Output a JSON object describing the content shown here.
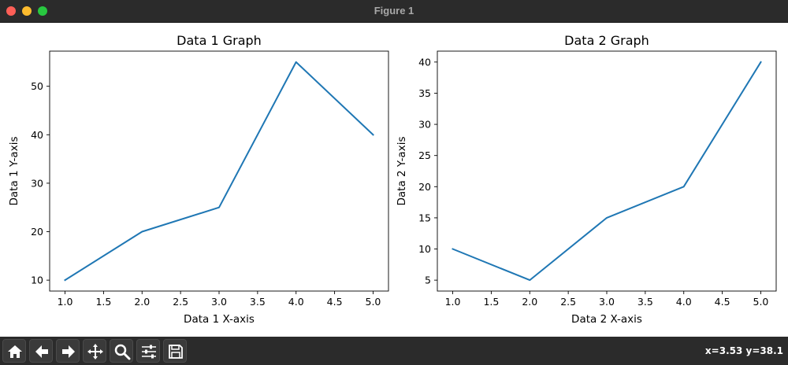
{
  "window": {
    "title": "Figure 1"
  },
  "toolbar": {
    "buttons": [
      {
        "name": "home",
        "icon": "home-icon"
      },
      {
        "name": "back",
        "icon": "arrow-left-icon"
      },
      {
        "name": "forward",
        "icon": "arrow-right-icon"
      },
      {
        "name": "pan",
        "icon": "move-icon"
      },
      {
        "name": "zoom",
        "icon": "magnifier-icon"
      },
      {
        "name": "configure",
        "icon": "sliders-icon"
      },
      {
        "name": "save",
        "icon": "floppy-disk-icon"
      }
    ],
    "coordinates": "x=3.53 y=38.1"
  },
  "colors": {
    "line": "#1f77b4",
    "titlebar": "#2b2b2b"
  },
  "chart_data": [
    {
      "type": "line",
      "title": "Data 1 Graph",
      "xlabel": "Data 1 X-axis",
      "ylabel": "Data 1 Y-axis",
      "x": [
        1,
        2,
        3,
        4,
        5
      ],
      "series": [
        {
          "values": [
            10,
            20,
            25,
            55,
            40
          ]
        }
      ],
      "xlim": [
        0.8,
        5.2
      ],
      "ylim": [
        7.75,
        57.25
      ],
      "xticks": [
        "1.0",
        "1.5",
        "2.0",
        "2.5",
        "3.0",
        "3.5",
        "4.0",
        "4.5",
        "5.0"
      ],
      "yticks": [
        "10",
        "20",
        "30",
        "40",
        "50"
      ],
      "grid": false
    },
    {
      "type": "line",
      "title": "Data 2 Graph",
      "xlabel": "Data 2 X-axis",
      "ylabel": "Data 2 Y-axis",
      "x": [
        1,
        2,
        3,
        4,
        5
      ],
      "series": [
        {
          "values": [
            10,
            5,
            15,
            20,
            40
          ]
        }
      ],
      "xlim": [
        0.8,
        5.2
      ],
      "ylim": [
        3.25,
        41.75
      ],
      "xticks": [
        "1.0",
        "1.5",
        "2.0",
        "2.5",
        "3.0",
        "3.5",
        "4.0",
        "4.5",
        "5.0"
      ],
      "yticks": [
        "5",
        "10",
        "15",
        "20",
        "25",
        "30",
        "35",
        "40"
      ],
      "grid": false
    }
  ]
}
